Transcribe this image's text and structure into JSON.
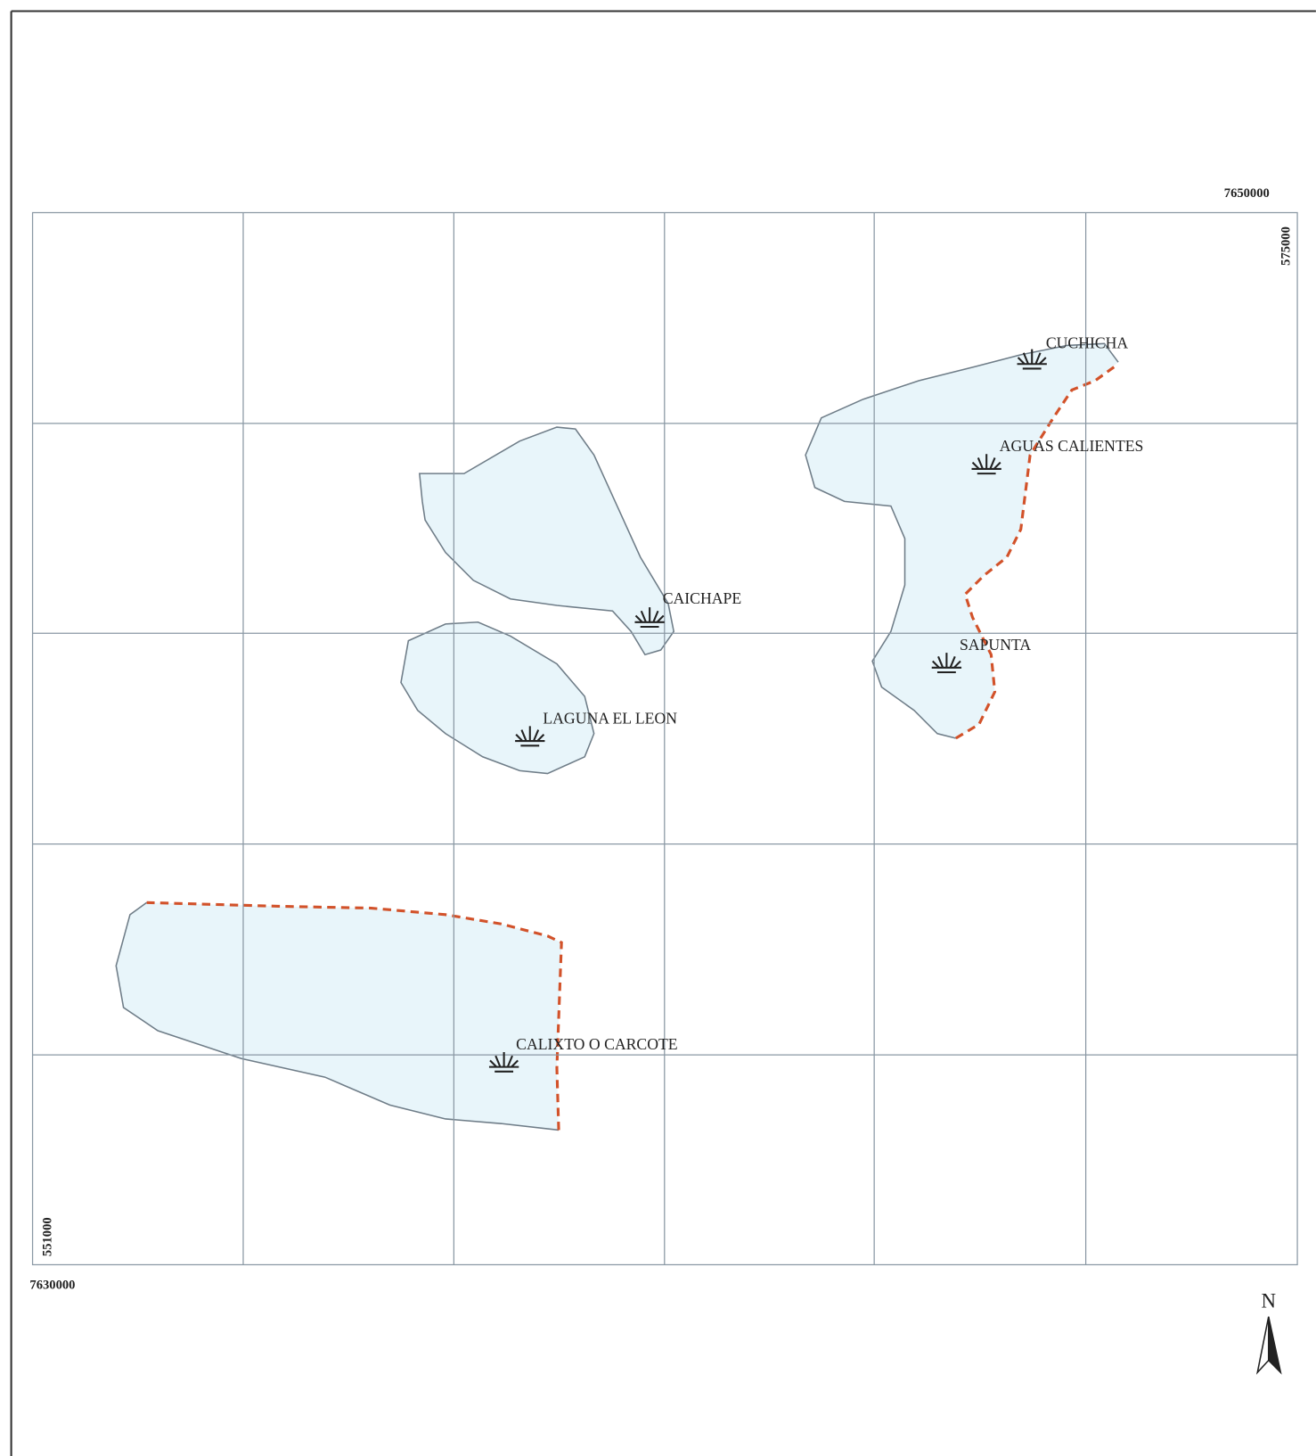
{
  "map": {
    "coordinates": {
      "top_right_northing": "7650000",
      "right_easting": "575000",
      "left_easting": "551000",
      "bottom_left_northing": "7630000"
    },
    "places": [
      {
        "label": "CUCHICHA"
      },
      {
        "label": "AGUAS CALIENTES"
      },
      {
        "label": "CAICHAPE"
      },
      {
        "label": "SAPUNTA"
      },
      {
        "label": "LAGUNA EL LEON"
      },
      {
        "label": "CALIXTO O CARCOTE"
      }
    ],
    "north_arrow": "N"
  }
}
